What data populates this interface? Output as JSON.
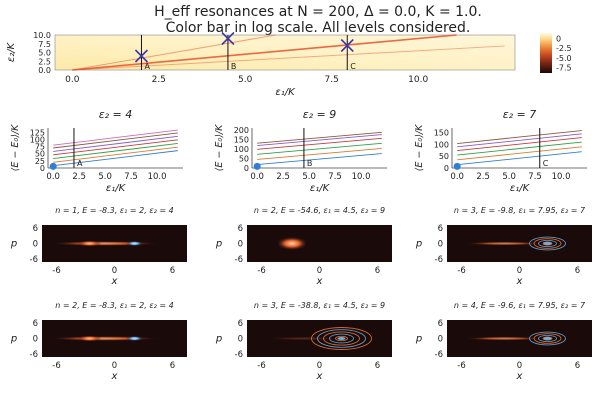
{
  "figure": {
    "title_line1": "H_eff resonances at N = 200, Δ = 0.0, K = 1.0.",
    "title_line2": "Color bar in log scale. All levels considered."
  },
  "chart_data": [
    {
      "id": "heatmap",
      "type": "heatmap",
      "xlabel": "ε₁/K",
      "ylabel": "ε₂/K",
      "xlim": [
        -0.5,
        12.8
      ],
      "ylim": [
        0,
        10
      ],
      "xticks": [
        "0.0",
        "2.5",
        "5.0",
        "7.5",
        "10.0"
      ],
      "yticks": [
        "0.0",
        "2.5",
        "5.0",
        "7.5",
        "10.0"
      ],
      "colorbar_ticks": [
        "0",
        "-2.5",
        "-5.0",
        "-7.5"
      ],
      "colorbar_range": [
        -9,
        1.5
      ],
      "markers": [
        {
          "label": "A",
          "x": 2,
          "y": 4
        },
        {
          "label": "B",
          "x": 4.5,
          "y": 9
        },
        {
          "label": "C",
          "x": 7.95,
          "y": 7
        }
      ]
    },
    {
      "id": "levels-1",
      "type": "line",
      "title": "ε₂ = 4",
      "xlabel": "ε₁/K",
      "ylabel": "⟨E − E₀⟩/K",
      "xlim": [
        -0.5,
        12.5
      ],
      "ylim": [
        0,
        140
      ],
      "xticks": [
        "0.0",
        "2.5",
        "5.0",
        "7.5",
        "10.0"
      ],
      "yticks": [
        "0",
        "25",
        "50",
        "75",
        "100",
        "125"
      ],
      "marker": {
        "label": "A",
        "x": 2
      },
      "intercepts": [
        8,
        20,
        33,
        46,
        58,
        70,
        80
      ],
      "slope": 4.4
    },
    {
      "id": "levels-2",
      "type": "line",
      "title": "ε₂ = 9",
      "xlabel": "ε₁/K",
      "ylabel": "⟨E − E₀⟩/K",
      "xlim": [
        -0.5,
        12.5
      ],
      "ylim": [
        0,
        210
      ],
      "xticks": [
        "0.0",
        "2.5",
        "5.0",
        "7.5",
        "10.0"
      ],
      "yticks": [
        "0",
        "50",
        "100",
        "150",
        "200"
      ],
      "marker": {
        "label": "B",
        "x": 4.5
      },
      "intercepts": [
        18,
        45,
        72,
        98,
        118,
        130
      ],
      "slope": 4.8
    },
    {
      "id": "levels-3",
      "type": "line",
      "title": "ε₂ = 7",
      "xlabel": "ε₁/K",
      "ylabel": "⟨E − E₀⟩/K",
      "xlim": [
        -0.5,
        12.5
      ],
      "ylim": [
        0,
        170
      ],
      "xticks": [
        "0.0",
        "2.5",
        "5.0",
        "7.5",
        "10.0"
      ],
      "yticks": [
        "0",
        "50",
        "100",
        "150"
      ],
      "marker": {
        "label": "C",
        "x": 7.95
      },
      "intercepts": [
        14,
        35,
        55,
        74,
        90,
        104
      ],
      "slope": 4.6
    },
    {
      "id": "husimi-1",
      "type": "heatmap",
      "title": "n = 1, E = -8.3, ε₁ = 2, ε₂ = 4",
      "xlabel": "x",
      "ylabel": "p",
      "xticks": [
        "-6",
        "0",
        "6"
      ],
      "yticks": [
        "6",
        "0",
        "-6"
      ],
      "pattern": "line-center"
    },
    {
      "id": "husimi-2",
      "type": "heatmap",
      "title": "n = 2, E = -54.6, ε₁ = 4.5, ε₂ = 9",
      "xlabel": "x",
      "ylabel": "p",
      "xticks": [
        "-6",
        "0",
        "6"
      ],
      "yticks": [
        "6",
        "0",
        "-6"
      ],
      "pattern": "blob-left"
    },
    {
      "id": "husimi-3",
      "type": "heatmap",
      "title": "n = 3, E = -9.8, ε₁ = 7.95, ε₂ = 7",
      "xlabel": "x",
      "ylabel": "p",
      "xticks": [
        "-6",
        "0",
        "6"
      ],
      "yticks": [
        "6",
        "0",
        "-6"
      ],
      "pattern": "rings-right"
    },
    {
      "id": "husimi-4",
      "type": "heatmap",
      "title": "n = 2, E = -8.3, ε₁ = 2, ε₂ = 4",
      "xlabel": "x",
      "ylabel": "p",
      "xticks": [
        "-6",
        "0",
        "6"
      ],
      "yticks": [
        "6",
        "0",
        "-6"
      ],
      "pattern": "line-center"
    },
    {
      "id": "husimi-5",
      "type": "heatmap",
      "title": "n = 3, E = -38.8, ε₁ = 4.5, ε₂ = 9",
      "xlabel": "x",
      "ylabel": "p",
      "xticks": [
        "-6",
        "0",
        "6"
      ],
      "yticks": [
        "6",
        "0",
        "-6"
      ],
      "pattern": "rings-right-big"
    },
    {
      "id": "husimi-6",
      "type": "heatmap",
      "title": "n = 4, E = -9.6, ε₁ = 7.95, ε₂ = 7",
      "xlabel": "x",
      "ylabel": "p",
      "xticks": [
        "-6",
        "0",
        "6"
      ],
      "yticks": [
        "6",
        "0",
        "-6"
      ],
      "pattern": "rings-right"
    }
  ],
  "colors": {
    "heat_low": "#fdf3c4",
    "heat_high": "#e8512b",
    "husimi_bg": "#1a0a0a",
    "husimi_warm": "#f07a3a",
    "husimi_cool": "#6fb0e0",
    "marker": "#3a3aa8",
    "level_lines": [
      "#2f7fd6",
      "#e07a2d",
      "#2da14a",
      "#c53b3b",
      "#8a5bc3",
      "#8b5a3c",
      "#d06ab8",
      "#777777",
      "#b5b82a",
      "#2ab5c7"
    ]
  }
}
